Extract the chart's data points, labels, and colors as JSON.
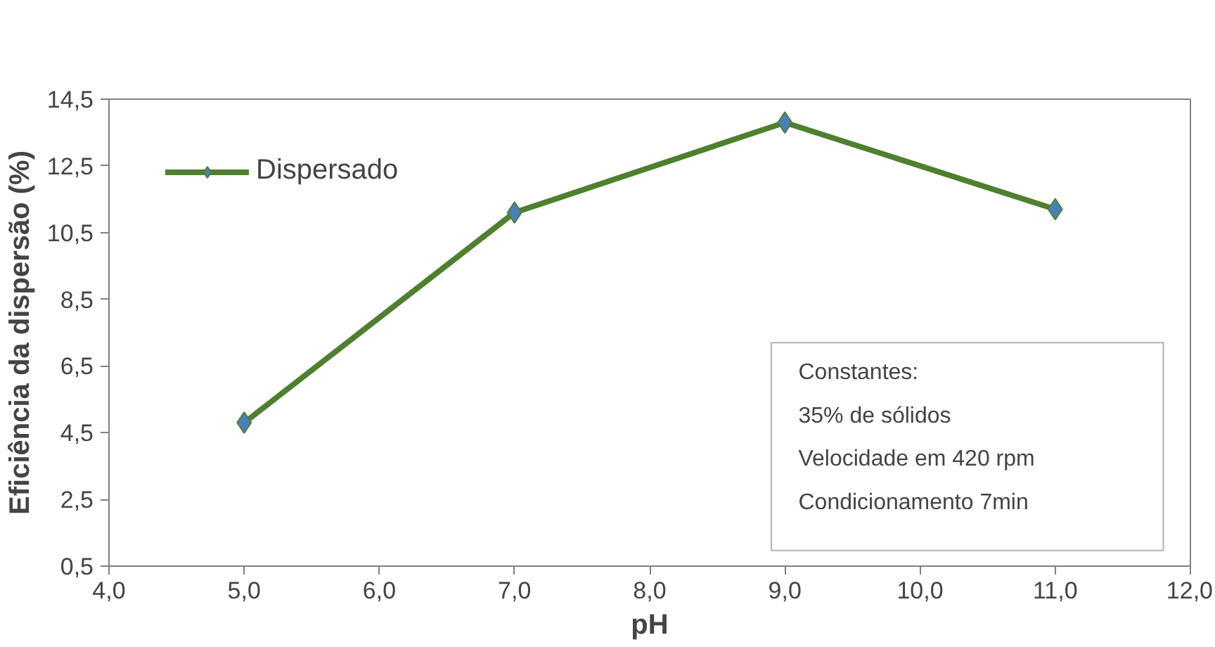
{
  "chart_data": {
    "type": "line",
    "xlabel": "pH",
    "ylabel": "Eficiência da dispersão (%)",
    "x": [
      5,
      7,
      9,
      11
    ],
    "series": [
      {
        "name": "Dispersado",
        "color": "#4f7f2f",
        "values": [
          4.8,
          11.1,
          13.8,
          11.2
        ]
      }
    ],
    "xlim": [
      4,
      12
    ],
    "xticks": [
      {
        "value": 4,
        "label": "4,0"
      },
      {
        "value": 5,
        "label": "5,0"
      },
      {
        "value": 6,
        "label": "6,0"
      },
      {
        "value": 7,
        "label": "7,0"
      },
      {
        "value": 8,
        "label": "8,0"
      },
      {
        "value": 9,
        "label": "9,0"
      },
      {
        "value": 10,
        "label": "10,0"
      },
      {
        "value": 11,
        "label": "11,0"
      },
      {
        "value": 12,
        "label": "12,0"
      }
    ],
    "ylim": [
      0.5,
      14.5
    ],
    "yticks": [
      {
        "value": 0.5,
        "label": "0,5"
      },
      {
        "value": 2.5,
        "label": "2,5"
      },
      {
        "value": 4.5,
        "label": "4,5"
      },
      {
        "value": 6.5,
        "label": "6,5"
      },
      {
        "value": 8.5,
        "label": "8,5"
      },
      {
        "value": 10.5,
        "label": "10,5"
      },
      {
        "value": 12.5,
        "label": "12,5"
      },
      {
        "value": 14.5,
        "label": "14,5"
      }
    ],
    "annotations": [
      "Constantes:",
      "35% de sólidos",
      "Velocidade em 420 rpm",
      "Condicionamento 7min"
    ],
    "marker": "diamond",
    "line_style": "solid",
    "grid": false,
    "legend": "top left"
  }
}
